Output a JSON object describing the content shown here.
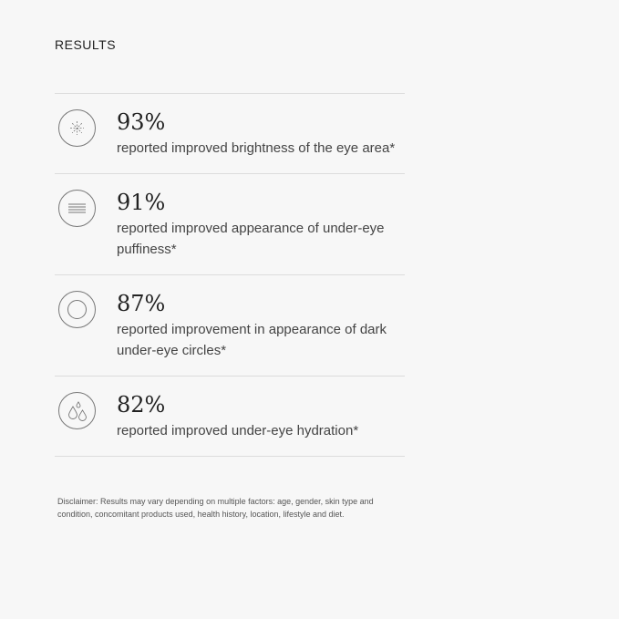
{
  "section": {
    "title": "RESULTS"
  },
  "results": [
    {
      "icon": "sparkle-icon",
      "percent": "93%",
      "text": "reported improved brightness of the eye area*"
    },
    {
      "icon": "lines-icon",
      "percent": "91%",
      "text": "reported improved appearance of under-eye puffiness*"
    },
    {
      "icon": "ring-icon",
      "percent": "87%",
      "text": "reported improvement in appearance of dark under-eye circles*"
    },
    {
      "icon": "droplets-icon",
      "percent": "82%",
      "text": "reported improved under-eye hydration*"
    }
  ],
  "disclaimer": "Disclaimer: Results may vary depending on multiple factors: age, gender, skin type and condition, concomitant products used, health history, location, lifestyle and diet."
}
